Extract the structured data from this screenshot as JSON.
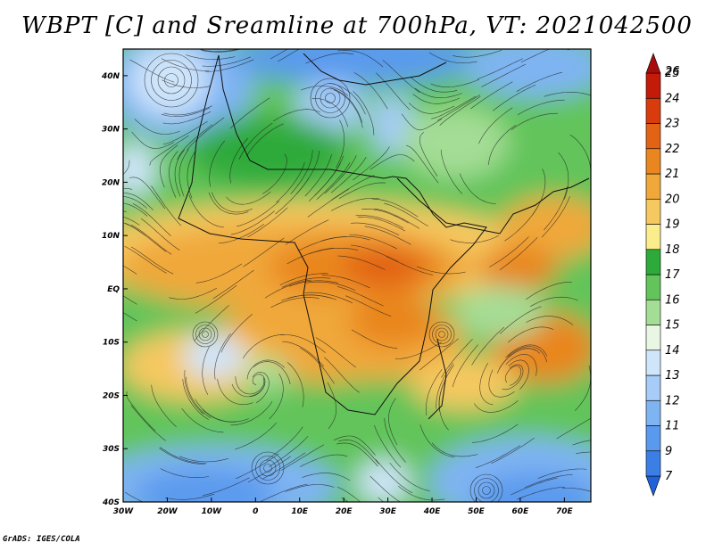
{
  "title": "WBPT [C] and Sreamline at 700hPa, VT: 2021042500",
  "credit": "GrADS: IGES/COLA",
  "map": {
    "lon_range": [
      -30,
      76
    ],
    "lat_range": [
      -40,
      45
    ],
    "lon_ticks": [
      {
        "value": -30,
        "label": "30W"
      },
      {
        "value": -20,
        "label": "20W"
      },
      {
        "value": -10,
        "label": "10W"
      },
      {
        "value": 0,
        "label": "0"
      },
      {
        "value": 10,
        "label": "10E"
      },
      {
        "value": 20,
        "label": "20E"
      },
      {
        "value": 30,
        "label": "30E"
      },
      {
        "value": 40,
        "label": "40E"
      },
      {
        "value": 50,
        "label": "50E"
      },
      {
        "value": 60,
        "label": "60E"
      },
      {
        "value": 70,
        "label": "70E"
      }
    ],
    "lat_ticks": [
      {
        "value": 40,
        "label": "40N"
      },
      {
        "value": 30,
        "label": "30N"
      },
      {
        "value": 20,
        "label": "20N"
      },
      {
        "value": 10,
        "label": "10N"
      },
      {
        "value": 0,
        "label": "EQ"
      },
      {
        "value": -10,
        "label": "10S"
      },
      {
        "value": -20,
        "label": "20S"
      },
      {
        "value": -30,
        "label": "30S"
      },
      {
        "value": -40,
        "label": "40S"
      }
    ]
  },
  "colorbar": {
    "levels": [
      "7",
      "9",
      "11",
      "12",
      "13",
      "14",
      "15",
      "16",
      "17",
      "18",
      "19",
      "20",
      "21",
      "22",
      "23",
      "24",
      "25",
      "26"
    ],
    "colors": [
      "#1f62d9",
      "#3b7fe6",
      "#5a9aee",
      "#7fb4f3",
      "#a6ccf7",
      "#cfe5fa",
      "#eaf6e4",
      "#a4dd95",
      "#62c45a",
      "#2eaa3a",
      "#fbec8c",
      "#f6c860",
      "#f0a83a",
      "#e9861f",
      "#e36314",
      "#d83c0c",
      "#c41a08",
      "#a90c0c"
    ]
  }
}
